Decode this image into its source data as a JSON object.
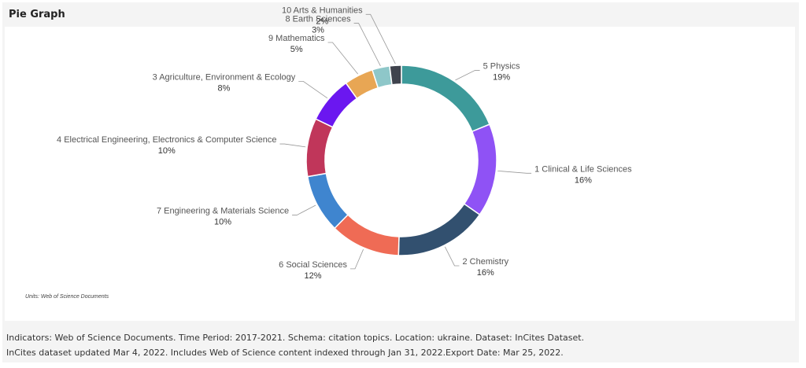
{
  "panel": {
    "title": "Pie Graph",
    "units_note": "Units: Web of Science Documents"
  },
  "footer": {
    "line1": "Indicators:  Web of Science Documents.  Time Period:  2017-2021.  Schema:  citation topics.  Location:  ukraine.  Dataset:  InCites Dataset.",
    "line2": "InCites dataset updated Mar 4, 2022. Includes Web of Science content indexed through Jan 31, 2022.Export Date: Mar 25, 2022."
  },
  "chart_data": {
    "type": "pie",
    "subtype": "donut",
    "slices": [
      {
        "name": "5 Physics",
        "label": "19%",
        "value": 19,
        "color": "#3d9a9a"
      },
      {
        "name": "1 Clinical & Life Sciences",
        "label": "16%",
        "value": 16,
        "color": "#8f52f5"
      },
      {
        "name": "2 Chemistry",
        "label": "16%",
        "value": 16,
        "color": "#32506f"
      },
      {
        "name": "6 Social Sciences",
        "label": "12%",
        "value": 12,
        "color": "#ef6b55"
      },
      {
        "name": "7 Engineering & Materials Science",
        "label": "10%",
        "value": 10,
        "color": "#3f85cf"
      },
      {
        "name": "4 Electrical Engineering, Electronics & Computer Science",
        "label": "10%",
        "value": 10,
        "color": "#c0365a"
      },
      {
        "name": "3 Agriculture, Environment & Ecology",
        "label": "8%",
        "value": 8,
        "color": "#6b17f0"
      },
      {
        "name": "9 Mathematics",
        "label": "5%",
        "value": 5,
        "color": "#e8a654"
      },
      {
        "name": "8 Earth Sciences",
        "label": "3%",
        "value": 3,
        "color": "#8ec7c9"
      },
      {
        "name": "10 Arts & Humanities",
        "label": "2%",
        "value": 2,
        "color": "#3f434d"
      }
    ]
  }
}
